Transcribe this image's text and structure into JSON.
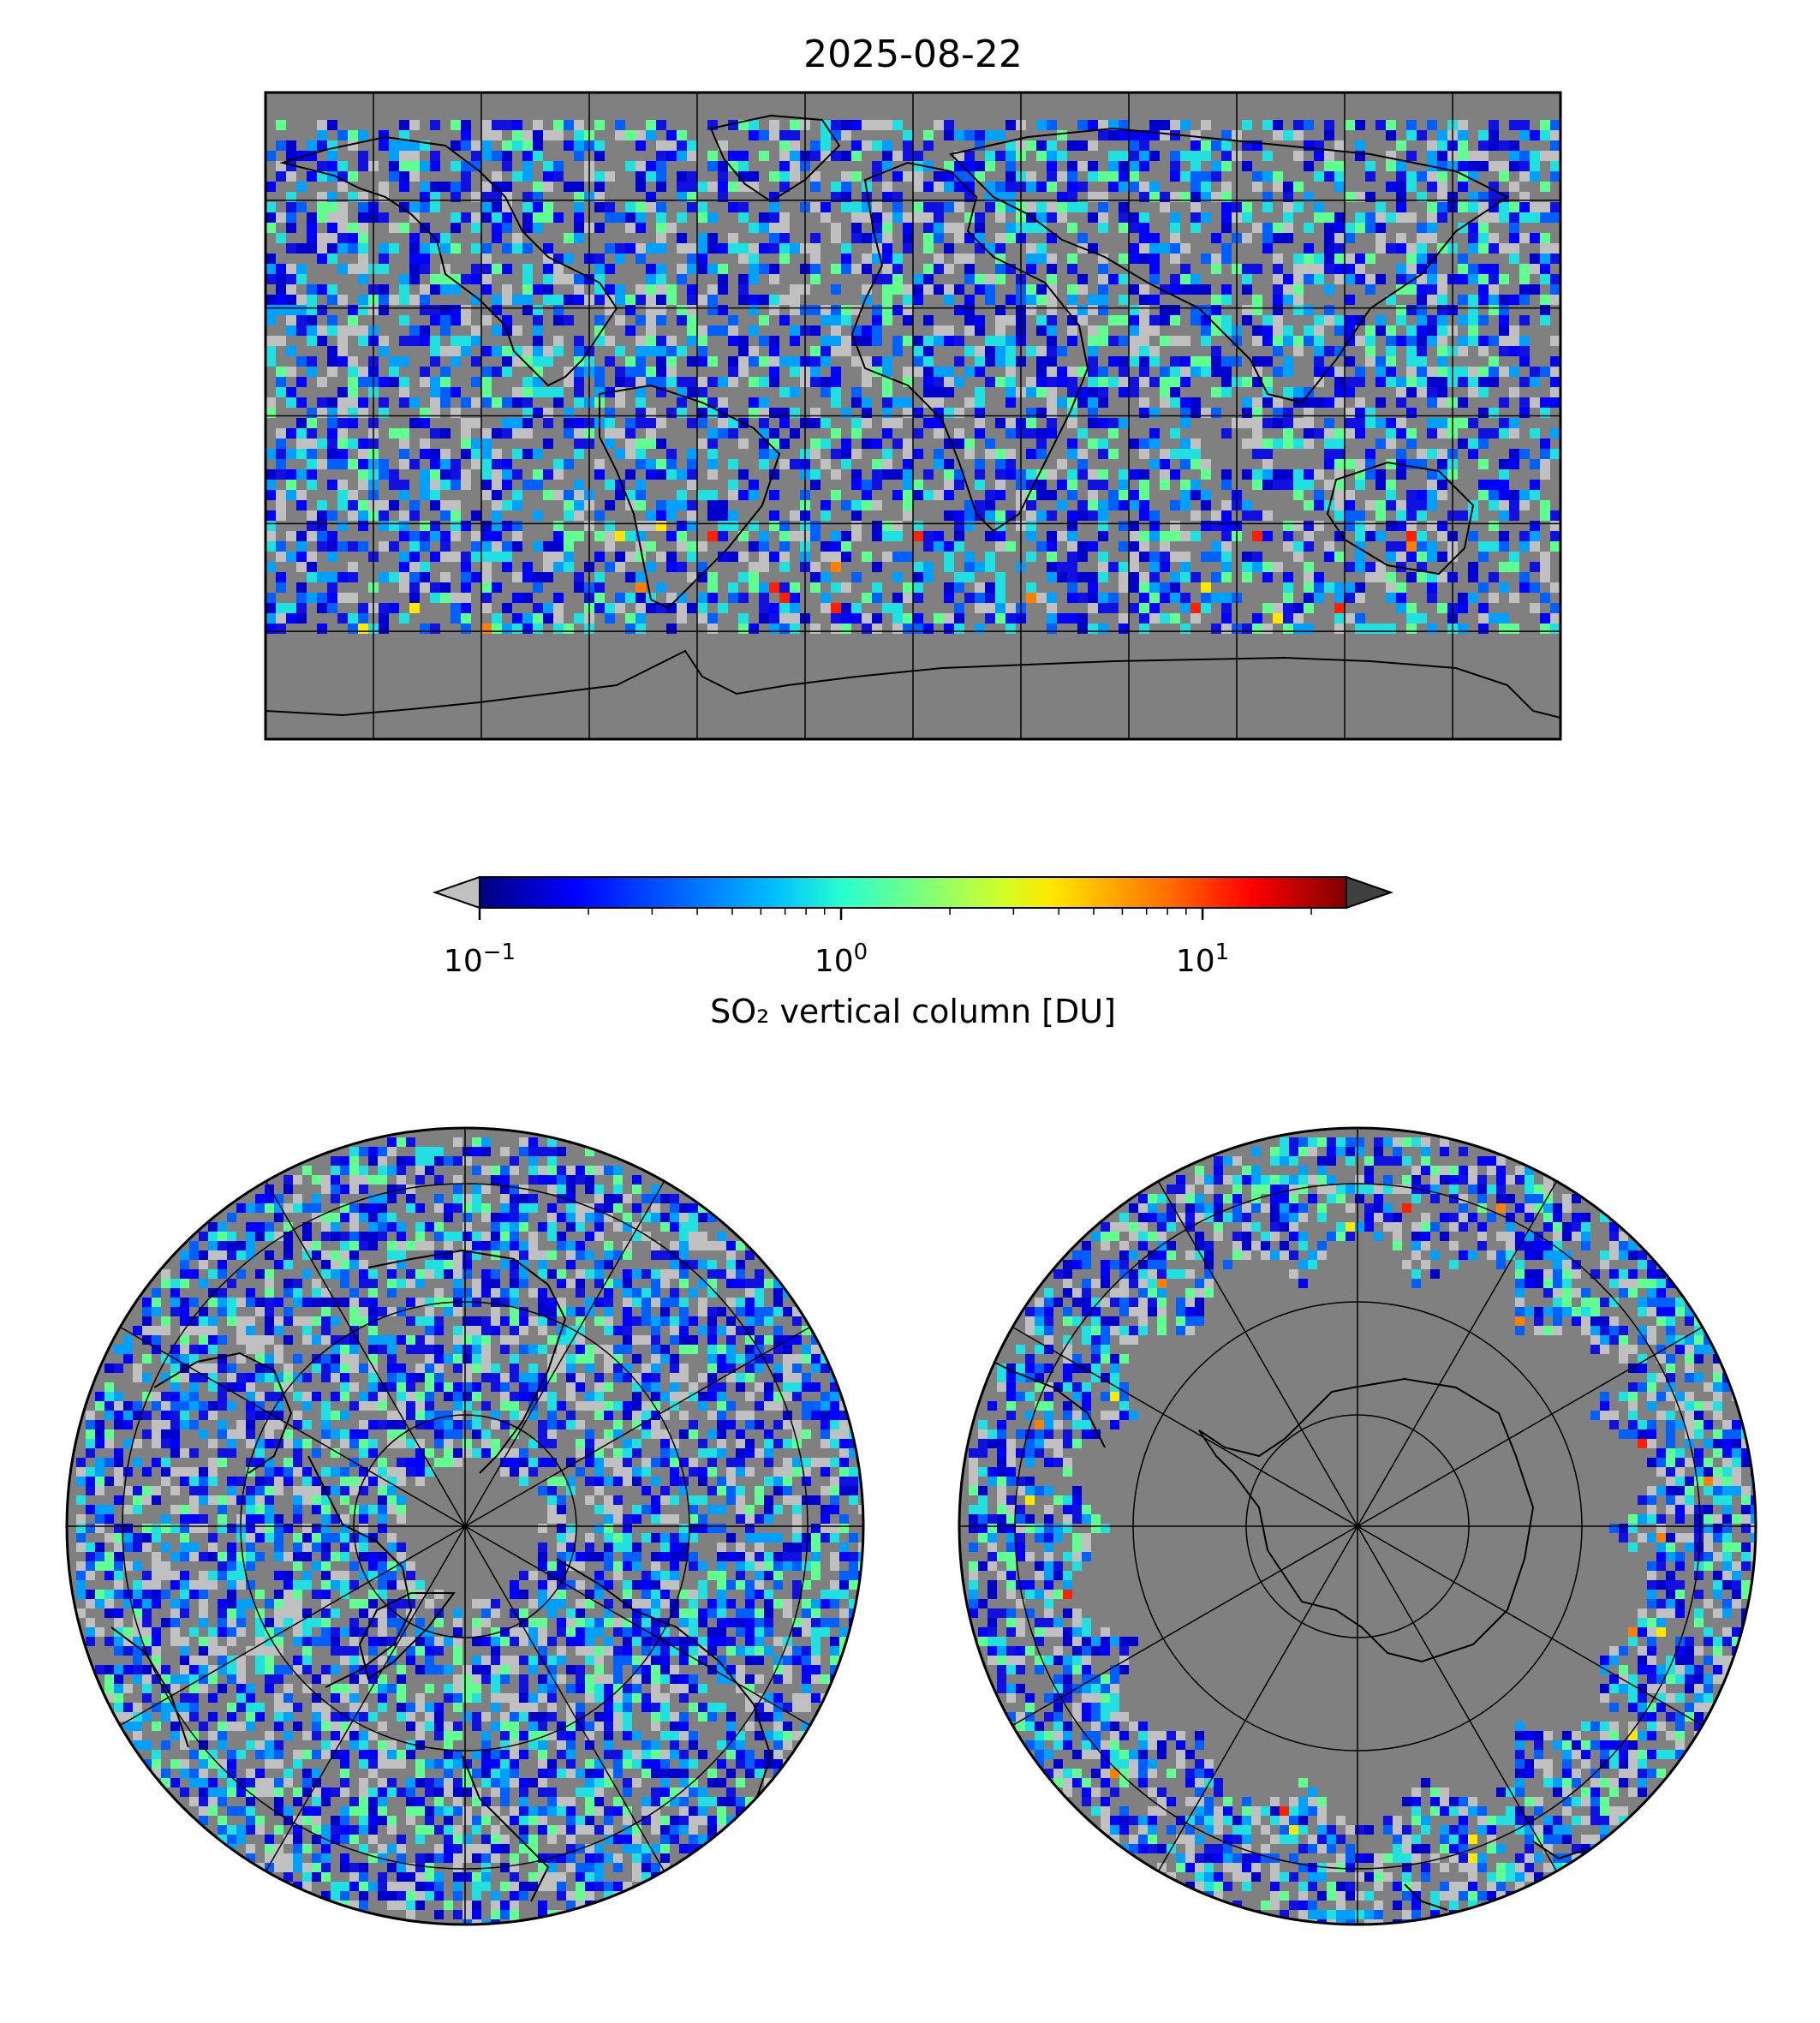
{
  "title": "2025-08-22",
  "colorbar": {
    "label": "SO₂ vertical column [DU]",
    "ticks": [
      {
        "base": "10",
        "exp": "−1",
        "value": 0.1
      },
      {
        "base": "10",
        "exp": "0",
        "value": 1
      },
      {
        "base": "10",
        "exp": "1",
        "value": 10
      }
    ],
    "range_du": [
      0.1,
      25
    ],
    "scale": "log",
    "colormap": "jet",
    "extend_under_color": "#c0c0c0",
    "extend_over_color": "#404040"
  },
  "panels": [
    {
      "name": "global-map",
      "projection": "plate-carree",
      "lon_range": [
        -180,
        180
      ],
      "lat_range": [
        -90,
        90
      ],
      "gridline_spacing_deg": 30
    },
    {
      "name": "north-polar-map",
      "projection": "north-polar-stereographic",
      "hemisphere": "north"
    },
    {
      "name": "south-polar-map",
      "projection": "south-polar-stereographic",
      "hemisphere": "south"
    }
  ],
  "colors": {
    "no_data": "#808080",
    "below_range": "#c0c0c0",
    "coastline": "#000000",
    "gridline": "#000000",
    "background": "#ffffff"
  }
}
